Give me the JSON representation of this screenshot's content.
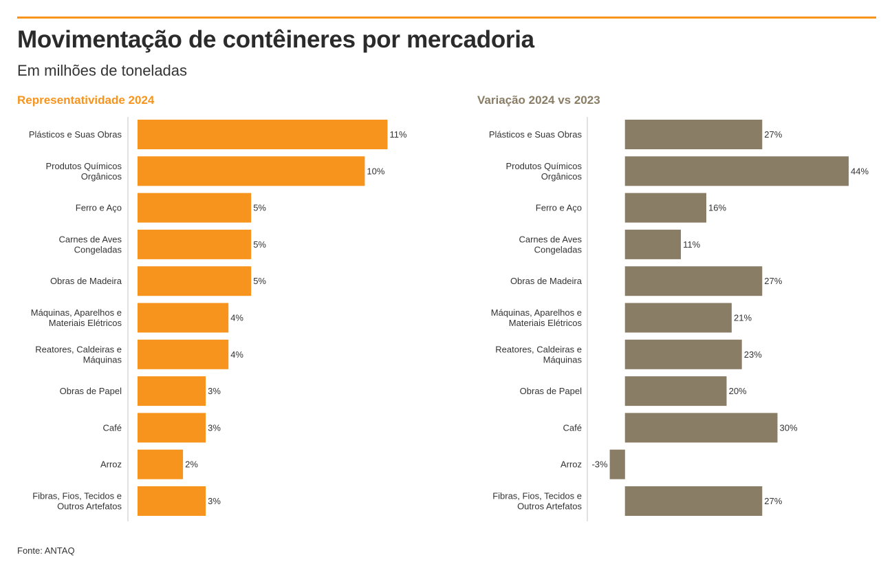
{
  "header": {
    "title": "Movimentação de contêineres por mercadoria",
    "subtitle": "Em milhões de toneladas"
  },
  "colors": {
    "accent": "#F7941D",
    "secondary": "#8A7D65",
    "axis": "#d9d9d9"
  },
  "chart_data": [
    {
      "type": "bar",
      "orientation": "horizontal",
      "title": "Representatividade 2024",
      "categories": [
        [
          "Plásticos e Suas Obras"
        ],
        [
          "Produtos Químicos",
          "Orgânicos"
        ],
        [
          "Ferro e Aço"
        ],
        [
          "Carnes de Aves",
          "Congeladas"
        ],
        [
          "Obras de Madeira"
        ],
        [
          "Máquinas, Aparelhos e",
          "Materiais Elétricos"
        ],
        [
          "Reatores, Caldeiras e",
          "Máquinas"
        ],
        [
          "Obras de Papel"
        ],
        [
          "Café"
        ],
        [
          "Arroz"
        ],
        [
          "Fibras, Fios, Tecidos e",
          "Outros Artefatos"
        ]
      ],
      "values": [
        11,
        10,
        5,
        5,
        5,
        4,
        4,
        3,
        3,
        2,
        3
      ],
      "data_labels": [
        "11%",
        "10%",
        "5%",
        "5%",
        "5%",
        "4%",
        "4%",
        "3%",
        "3%",
        "2%",
        "3%"
      ],
      "unit": "%",
      "xlim": [
        0,
        11.5
      ],
      "color": "#F7941D",
      "grid": false
    },
    {
      "type": "bar",
      "orientation": "horizontal",
      "title": "Variação 2024 vs 2023",
      "categories": [
        [
          "Plásticos e Suas Obras"
        ],
        [
          "Produtos Químicos",
          "Orgânicos"
        ],
        [
          "Ferro e Aço"
        ],
        [
          "Carnes de Aves",
          "Congeladas"
        ],
        [
          "Obras de Madeira"
        ],
        [
          "Máquinas, Aparelhos e",
          "Materiais Elétricos"
        ],
        [
          "Reatores, Caldeiras e",
          "Máquinas"
        ],
        [
          "Obras de Papel"
        ],
        [
          "Café"
        ],
        [
          "Arroz"
        ],
        [
          "Fibras, Fios, Tecidos e",
          "Outros Artefatos"
        ]
      ],
      "values": [
        27,
        44,
        16,
        11,
        27,
        21,
        23,
        20,
        30,
        -3,
        27
      ],
      "data_labels": [
        "27%",
        "44%",
        "16%",
        "11%",
        "27%",
        "21%",
        "23%",
        "20%",
        "30%",
        "-3%",
        "27%"
      ],
      "unit": "%",
      "xlim": [
        -7,
        44
      ],
      "color": "#8A7D65",
      "grid": false
    }
  ],
  "footer": {
    "source": "Fonte: ANTAQ"
  }
}
